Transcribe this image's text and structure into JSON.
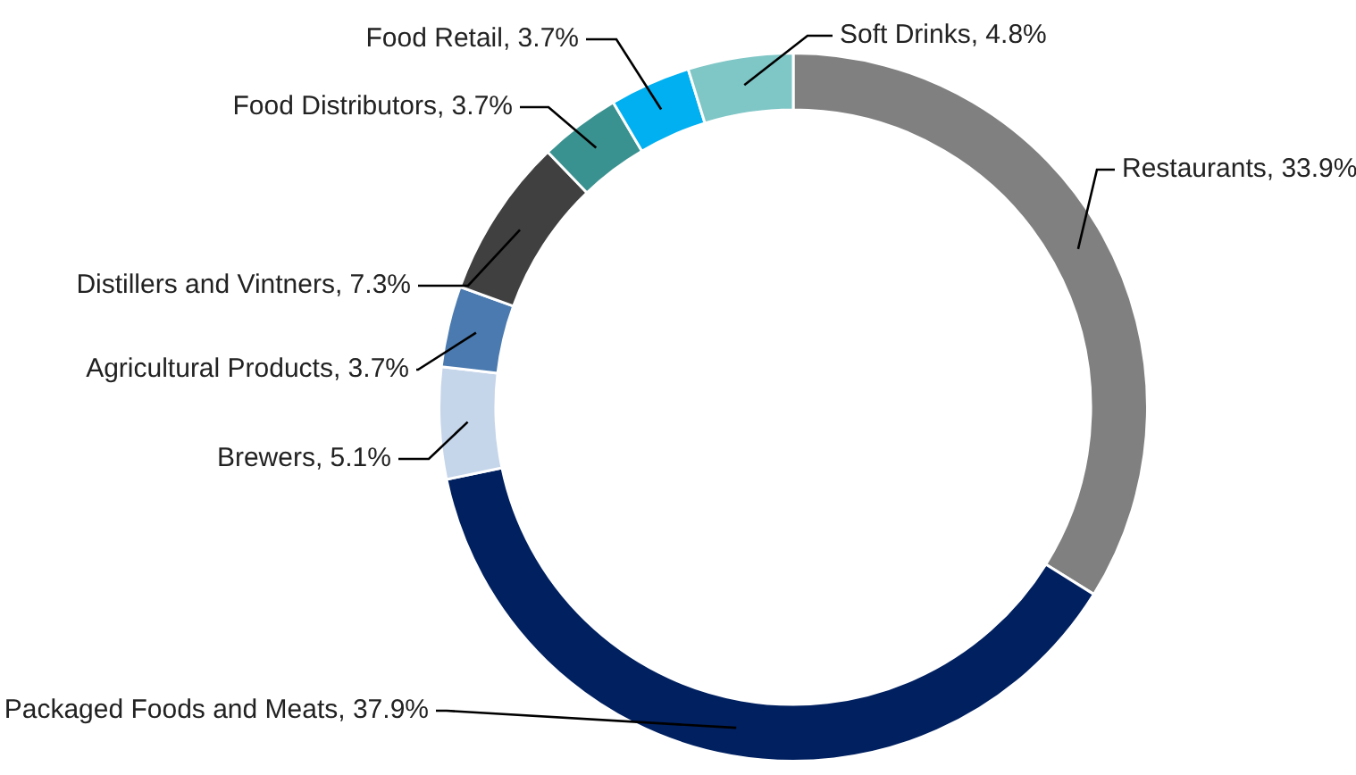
{
  "chart_data": {
    "type": "donut",
    "categories": [
      "Restaurants",
      "Packaged Foods and Meats",
      "Brewers",
      "Agricultural Products",
      "Distillers and Vintners",
      "Food Distributors",
      "Food Retail",
      "Soft Drinks"
    ],
    "values": [
      33.9,
      37.9,
      5.1,
      3.7,
      7.3,
      3.7,
      3.7,
      4.8
    ],
    "colors": [
      "#808080",
      "#002060",
      "#c5d5ea",
      "#4a7aaf",
      "#404040",
      "#3a9290",
      "#00b0f0",
      "#7fc6c6"
    ],
    "value_labels": [
      "33.9%",
      "37.9%",
      "5.1%",
      "3.7%",
      "7.3%",
      "3.7%",
      "3.7%",
      "4.8%"
    ],
    "legend": false
  }
}
